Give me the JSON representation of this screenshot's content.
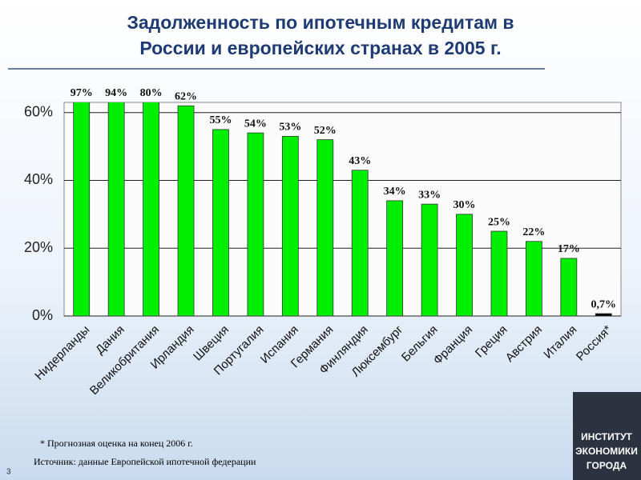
{
  "slide_number": "3",
  "chart_data": {
    "type": "bar",
    "title": "Задолженность по ипотечным кредитам в России и европейских странах в 2005 г.",
    "categories": [
      "Нидерланды",
      "Дания",
      "Великобритания",
      "Ирландия",
      "Швеция",
      "Португалия",
      "Испания",
      "Германия",
      "Финляндия",
      "Люксембург",
      "Бельгия",
      "Франция",
      "Греция",
      "Австрия",
      "Италия",
      "Россия*"
    ],
    "values": [
      97,
      94,
      80,
      62,
      55,
      54,
      53,
      52,
      43,
      34,
      33,
      30,
      25,
      22,
      17,
      0.7
    ],
    "value_labels": [
      "97%",
      "94%",
      "80%",
      "62%",
      "55%",
      "54%",
      "53%",
      "52%",
      "43%",
      "34%",
      "33%",
      "30%",
      "25%",
      "22%",
      "17%",
      "0,7%"
    ],
    "colors": [
      "#00ee00",
      "#00ee00",
      "#00ee00",
      "#00ee00",
      "#00ee00",
      "#00ee00",
      "#00ee00",
      "#00ee00",
      "#00ee00",
      "#00ee00",
      "#00ee00",
      "#00ee00",
      "#00ee00",
      "#00ee00",
      "#00ee00",
      "#000000"
    ],
    "ylim": [
      0,
      63
    ],
    "yticks": [
      {
        "value": 0,
        "label": "0%"
      },
      {
        "value": 20,
        "label": "20%"
      },
      {
        "value": 40,
        "label": "40%"
      },
      {
        "value": 60,
        "label": "60%"
      }
    ],
    "grid": true,
    "footnote": "* Прогнозная оценка на конец 2006 г.",
    "source": "Источник: данные Европейской ипотечной федерации"
  },
  "logo": [
    "ИНСТИТУТ",
    "ЭКОНОМИКИ",
    "ГОРОДА"
  ]
}
